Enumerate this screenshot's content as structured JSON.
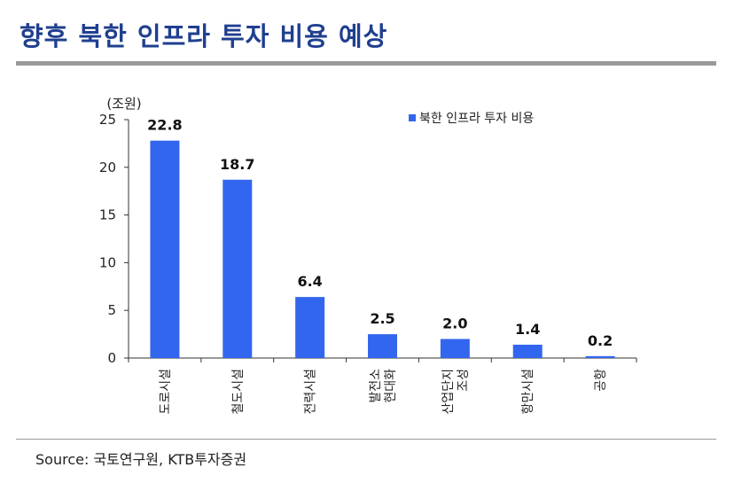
{
  "title": "향후 북한 인프라 투자 비용 예상",
  "source": "Source: 국토연구원, KTB투자증권",
  "chart_data": {
    "type": "bar",
    "title": "향후 북한 인프라 투자 비용 예상",
    "unit_label": "(조원)",
    "ylabel": "조원",
    "ylim": [
      0,
      25
    ],
    "yticks": [
      0,
      5,
      10,
      15,
      20,
      25
    ],
    "legend": {
      "label": "북한 인프라 투자 비용",
      "position": "top-right"
    },
    "color": "#3366ee",
    "categories": [
      [
        "도로시설"
      ],
      [
        "철도시설"
      ],
      [
        "전력시설"
      ],
      [
        "발전소",
        "현대화"
      ],
      [
        "산업단지",
        "조성"
      ],
      [
        "항만시설"
      ],
      [
        "공항"
      ]
    ],
    "values": [
      22.8,
      18.7,
      6.4,
      2.5,
      2.0,
      1.4,
      0.2
    ],
    "value_labels": [
      "22.8",
      "18.7",
      "6.4",
      "2.5",
      "2.0",
      "1.4",
      "0.2"
    ],
    "grid": false
  }
}
